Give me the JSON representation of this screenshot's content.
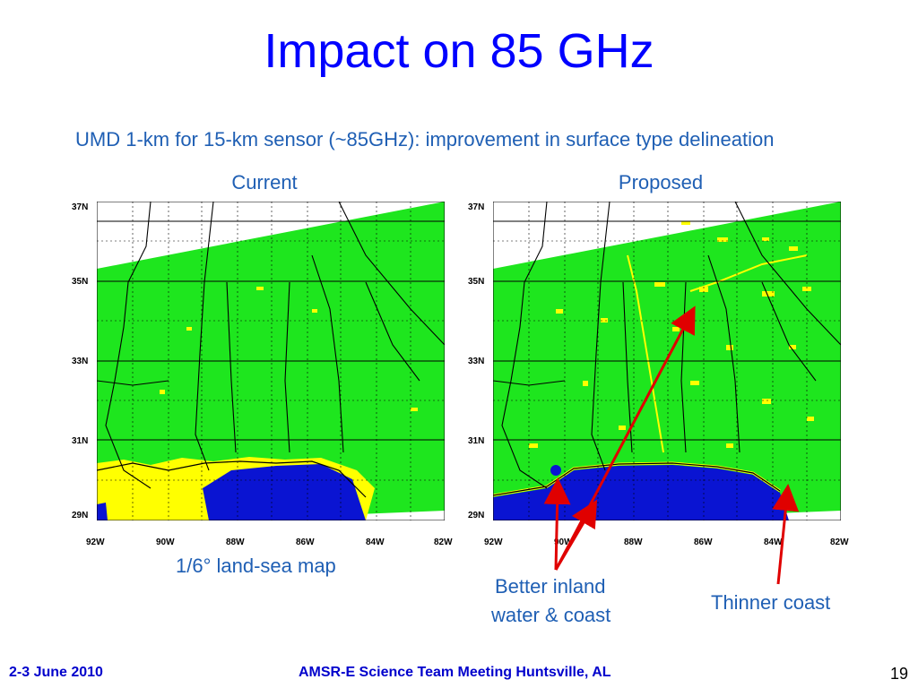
{
  "slide": {
    "title": "Impact on 85 GHz",
    "figure_heading": "UMD 1-km for 15-km sensor (~85GHz): improvement in surface type delineation",
    "panels": {
      "left_title": "Current",
      "right_title": "Proposed"
    },
    "latitude_labels": [
      "37N",
      "35N",
      "33N",
      "31N",
      "29N"
    ],
    "longitude_labels": [
      "92W",
      "90W",
      "88W",
      "86W",
      "84W",
      "82W"
    ],
    "captions": {
      "left": "1/6° land-sea map",
      "annotation_inland_line1": "Better inland",
      "annotation_inland_line2": "water & coast",
      "annotation_coast": "Thinner coast"
    },
    "colors": {
      "land": "#1ee61e",
      "coast": "#ffff00",
      "water": "#0a14d2",
      "title": "#0000ff",
      "arrow": "#e00000"
    }
  },
  "footer": {
    "date": "2-3 June 2010",
    "event": "AMSR-E Science Team Meeting  Huntsville, AL",
    "page_number": "19"
  }
}
